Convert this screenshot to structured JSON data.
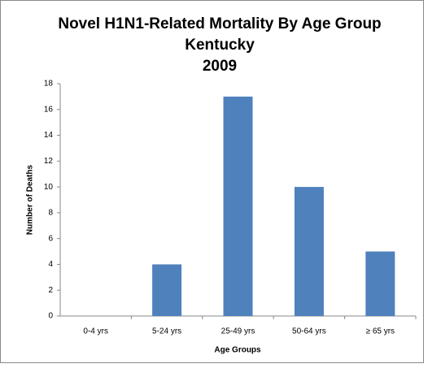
{
  "chart_data": {
    "type": "bar",
    "title": [
      "Novel H1N1-Related Mortality By Age Group",
      "Kentucky",
      "2009"
    ],
    "x_label": "Age Groups",
    "y_label": "Number of Deaths",
    "categories": [
      "0-4 yrs",
      "5-24 yrs",
      "25-49 yrs",
      "50-64 yrs",
      "≥ 65 yrs"
    ],
    "values": [
      0,
      4,
      17,
      10,
      5
    ],
    "color": "#4f81bd",
    "ylim": [
      0,
      18
    ],
    "yticks": [
      0,
      2,
      4,
      6,
      8,
      10,
      12,
      14,
      16,
      18
    ],
    "grid": false
  }
}
